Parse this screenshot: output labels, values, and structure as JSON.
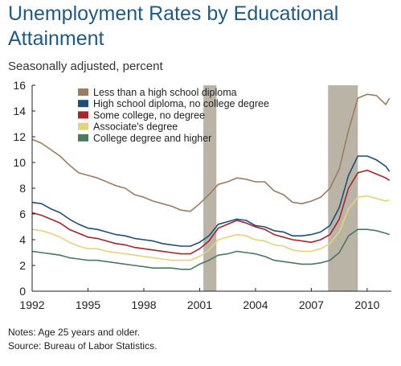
{
  "chart_data": {
    "type": "line",
    "title": "Unemployment Rates by Educational Attainment",
    "subtitle": "Seasonally adjusted, percent",
    "ylim": [
      0,
      16
    ],
    "yticks": [
      0,
      2,
      4,
      6,
      8,
      10,
      12,
      14,
      16
    ],
    "xlim": [
      1992,
      2011.3
    ],
    "xticks": [
      1992,
      1995,
      1998,
      2001,
      2004,
      2007,
      2010
    ],
    "grid": false,
    "legend_position": "top-left",
    "recessions": [
      [
        2001.2,
        2001.9
      ],
      [
        2007.9,
        2009.5
      ]
    ],
    "recession_color": "#b9b4a6",
    "series": [
      {
        "name": "Less than a high school diploma",
        "color": "#9a7d62",
        "x": [
          1992,
          1992.5,
          1993,
          1993.5,
          1994,
          1994.5,
          1995,
          1995.5,
          1996,
          1996.5,
          1997,
          1997.5,
          1998,
          1998.5,
          1999,
          1999.5,
          2000,
          2000.5,
          2001,
          2001.5,
          2002,
          2002.5,
          2003,
          2003.5,
          2004,
          2004.5,
          2005,
          2005.5,
          2006,
          2006.5,
          2007,
          2007.5,
          2008,
          2008.5,
          2009,
          2009.5,
          2010,
          2010.5,
          2011,
          2011.2
        ],
        "values": [
          11.8,
          11.5,
          11.0,
          10.5,
          9.8,
          9.2,
          9.0,
          8.8,
          8.5,
          8.2,
          8.0,
          7.5,
          7.3,
          7.0,
          6.8,
          6.6,
          6.3,
          6.2,
          6.8,
          7.5,
          8.3,
          8.5,
          8.8,
          8.7,
          8.5,
          8.5,
          7.8,
          7.5,
          6.9,
          6.8,
          7.0,
          7.3,
          8.0,
          9.5,
          12.5,
          15.0,
          15.3,
          15.2,
          14.5,
          15.0
        ]
      },
      {
        "name": "High school diploma, no college degree",
        "color": "#1f4e79",
        "x": [
          1992,
          1992.5,
          1993,
          1993.5,
          1994,
          1994.5,
          1995,
          1995.5,
          1996,
          1996.5,
          1997,
          1997.5,
          1998,
          1998.5,
          1999,
          1999.5,
          2000,
          2000.5,
          2001,
          2001.5,
          2002,
          2002.5,
          2003,
          2003.5,
          2004,
          2004.5,
          2005,
          2005.5,
          2006,
          2006.5,
          2007,
          2007.5,
          2008,
          2008.5,
          2009,
          2009.5,
          2010,
          2010.5,
          2011,
          2011.2
        ],
        "values": [
          6.9,
          6.8,
          6.4,
          6.1,
          5.6,
          5.2,
          4.9,
          4.8,
          4.6,
          4.4,
          4.3,
          4.1,
          4.0,
          3.9,
          3.7,
          3.6,
          3.5,
          3.5,
          3.8,
          4.3,
          5.2,
          5.4,
          5.6,
          5.5,
          5.1,
          5.0,
          4.7,
          4.6,
          4.3,
          4.3,
          4.4,
          4.6,
          5.1,
          6.5,
          9.0,
          10.5,
          10.5,
          10.2,
          9.7,
          9.3
        ]
      },
      {
        "name": "Some college, no degree",
        "color": "#a5262c",
        "x": [
          1992,
          1992.5,
          1993,
          1993.5,
          1994,
          1994.5,
          1995,
          1995.5,
          1996,
          1996.5,
          1997,
          1997.5,
          1998,
          1998.5,
          1999,
          1999.5,
          2000,
          2000.5,
          2001,
          2001.5,
          2002,
          2002.5,
          2003,
          2003.5,
          2004,
          2004.5,
          2005,
          2005.5,
          2006,
          2006.5,
          2007,
          2007.5,
          2008,
          2008.5,
          2009,
          2009.5,
          2010,
          2010.5,
          2011,
          2011.2
        ],
        "values": [
          6.1,
          5.9,
          5.6,
          5.3,
          4.8,
          4.5,
          4.2,
          4.1,
          3.9,
          3.7,
          3.6,
          3.4,
          3.3,
          3.2,
          3.1,
          3.0,
          2.9,
          2.9,
          3.3,
          3.9,
          4.9,
          5.2,
          5.5,
          5.3,
          5.0,
          4.8,
          4.4,
          4.2,
          4.0,
          3.9,
          3.8,
          4.0,
          4.4,
          5.6,
          8.0,
          9.2,
          9.4,
          9.1,
          8.8,
          8.6
        ]
      },
      {
        "name": "Associate's degree",
        "color": "#e3d37f",
        "x": [
          1992,
          1992.5,
          1993,
          1993.5,
          1994,
          1994.5,
          1995,
          1995.5,
          1996,
          1996.5,
          1997,
          1997.5,
          1998,
          1998.5,
          1999,
          1999.5,
          2000,
          2000.5,
          2001,
          2001.5,
          2002,
          2002.5,
          2003,
          2003.5,
          2004,
          2004.5,
          2005,
          2005.5,
          2006,
          2006.5,
          2007,
          2007.5,
          2008,
          2008.5,
          2009,
          2009.5,
          2010,
          2010.5,
          2011,
          2011.2
        ],
        "values": [
          4.8,
          4.7,
          4.5,
          4.2,
          3.8,
          3.5,
          3.3,
          3.3,
          3.1,
          3.0,
          2.9,
          2.8,
          2.7,
          2.6,
          2.5,
          2.4,
          2.4,
          2.4,
          2.7,
          3.2,
          4.0,
          4.2,
          4.4,
          4.3,
          4.0,
          3.9,
          3.6,
          3.5,
          3.2,
          3.1,
          3.1,
          3.3,
          3.7,
          4.6,
          6.4,
          7.3,
          7.4,
          7.2,
          7.0,
          7.1
        ]
      },
      {
        "name": "College degree and higher",
        "color": "#4a7a5e",
        "x": [
          1992,
          1992.5,
          1993,
          1993.5,
          1994,
          1994.5,
          1995,
          1995.5,
          1996,
          1996.5,
          1997,
          1997.5,
          1998,
          1998.5,
          1999,
          1999.5,
          2000,
          2000.5,
          2001,
          2001.5,
          2002,
          2002.5,
          2003,
          2003.5,
          2004,
          2004.5,
          2005,
          2005.5,
          2006,
          2006.5,
          2007,
          2007.5,
          2008,
          2008.5,
          2009,
          2009.5,
          2010,
          2010.5,
          2011,
          2011.2
        ],
        "values": [
          3.1,
          3.0,
          2.9,
          2.8,
          2.6,
          2.5,
          2.4,
          2.4,
          2.3,
          2.2,
          2.1,
          2.0,
          1.9,
          1.8,
          1.8,
          1.8,
          1.7,
          1.7,
          2.1,
          2.4,
          2.8,
          2.9,
          3.1,
          3.0,
          2.9,
          2.7,
          2.4,
          2.3,
          2.2,
          2.1,
          2.1,
          2.2,
          2.4,
          3.0,
          4.3,
          4.8,
          4.8,
          4.7,
          4.5,
          4.4
        ]
      }
    ]
  },
  "notes": [
    "Notes: Age 25 years and older.",
    "Source: Bureau of Labor Statistics."
  ]
}
